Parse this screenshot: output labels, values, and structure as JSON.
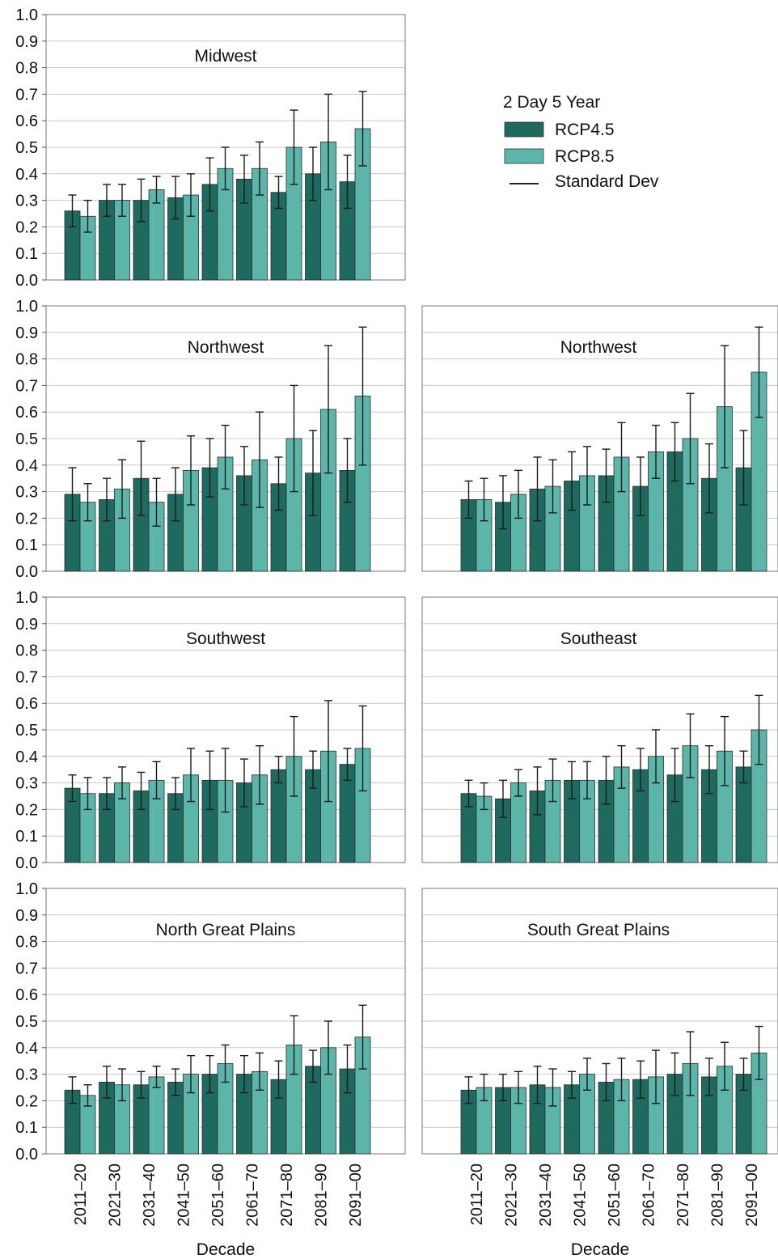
{
  "figure": {
    "legend": {
      "title": "2 Day 5 Year",
      "items": [
        {
          "label": "RCP4.5",
          "color": "#1e6a5e"
        },
        {
          "label": "RCP8.5",
          "color": "#5bb5a8"
        },
        {
          "label": "Standard Dev",
          "color": "#222222"
        }
      ]
    },
    "xlabel": "Decade"
  },
  "chart_data": [
    {
      "type": "bar",
      "title": "Midwest",
      "categories": [
        "2011–20",
        "2021–30",
        "2031–40",
        "2041–50",
        "2051–60",
        "2061–70",
        "2071–80",
        "2081–90",
        "2091–00"
      ],
      "series": [
        {
          "name": "RCP4.5",
          "values": [
            0.26,
            0.3,
            0.3,
            0.31,
            0.36,
            0.38,
            0.33,
            0.4,
            0.37
          ],
          "error": [
            0.06,
            0.06,
            0.08,
            0.08,
            0.1,
            0.09,
            0.06,
            0.1,
            0.1
          ]
        },
        {
          "name": "RCP8.5",
          "values": [
            0.24,
            0.3,
            0.34,
            0.32,
            0.42,
            0.42,
            0.5,
            0.52,
            0.57
          ],
          "error": [
            0.06,
            0.06,
            0.05,
            0.08,
            0.08,
            0.1,
            0.14,
            0.18,
            0.14
          ]
        }
      ],
      "ylim": [
        0,
        1.0
      ],
      "yticks": [
        "0.0",
        "0.1",
        "0.2",
        "0.3",
        "0.4",
        "0.5",
        "0.6",
        "0.7",
        "0.8",
        "0.9",
        "1.0"
      ],
      "xlabel": "",
      "grid": true
    },
    {
      "type": "bar",
      "title": "Northwest",
      "categories": [
        "2011–20",
        "2021–30",
        "2031–40",
        "2041–50",
        "2051–60",
        "2061–70",
        "2071–80",
        "2081–90",
        "2091–00"
      ],
      "series": [
        {
          "name": "RCP4.5",
          "values": [
            0.29,
            0.27,
            0.35,
            0.29,
            0.39,
            0.36,
            0.33,
            0.37,
            0.38
          ],
          "error": [
            0.1,
            0.08,
            0.14,
            0.1,
            0.11,
            0.11,
            0.1,
            0.16,
            0.12
          ]
        },
        {
          "name": "RCP8.5",
          "values": [
            0.26,
            0.31,
            0.26,
            0.38,
            0.43,
            0.42,
            0.5,
            0.61,
            0.66
          ],
          "error": [
            0.07,
            0.11,
            0.09,
            0.13,
            0.12,
            0.18,
            0.2,
            0.24,
            0.26
          ]
        }
      ],
      "ylim": [
        0,
        1.0
      ],
      "yticks": [
        "0.0",
        "0.1",
        "0.2",
        "0.3",
        "0.4",
        "0.5",
        "0.6",
        "0.7",
        "0.8",
        "0.9",
        "1.0"
      ],
      "xlabel": "",
      "grid": true
    },
    {
      "type": "bar",
      "title": "Northwest",
      "categories": [
        "2011–20",
        "2021–30",
        "2031–40",
        "2041–50",
        "2051–60",
        "2061–70",
        "2071–80",
        "2081–90",
        "2091–00"
      ],
      "series": [
        {
          "name": "RCP4.5",
          "values": [
            0.27,
            0.26,
            0.31,
            0.34,
            0.36,
            0.32,
            0.45,
            0.35,
            0.39
          ],
          "error": [
            0.07,
            0.1,
            0.12,
            0.11,
            0.1,
            0.11,
            0.11,
            0.13,
            0.14
          ]
        },
        {
          "name": "RCP8.5",
          "values": [
            0.27,
            0.29,
            0.32,
            0.36,
            0.43,
            0.45,
            0.5,
            0.62,
            0.75
          ],
          "error": [
            0.08,
            0.09,
            0.1,
            0.11,
            0.13,
            0.1,
            0.17,
            0.23,
            0.17
          ]
        }
      ],
      "ylim": [
        0,
        1.0
      ],
      "yticks": [],
      "xlabel": "",
      "grid": true
    },
    {
      "type": "bar",
      "title": "Southwest",
      "categories": [
        "2011–20",
        "2021–30",
        "2031–40",
        "2041–50",
        "2051–60",
        "2061–70",
        "2071–80",
        "2081–90",
        "2091–00"
      ],
      "series": [
        {
          "name": "RCP4.5",
          "values": [
            0.28,
            0.26,
            0.27,
            0.26,
            0.31,
            0.3,
            0.35,
            0.35,
            0.37
          ],
          "error": [
            0.05,
            0.06,
            0.07,
            0.06,
            0.11,
            0.09,
            0.05,
            0.07,
            0.06
          ]
        },
        {
          "name": "RCP8.5",
          "values": [
            0.26,
            0.3,
            0.31,
            0.33,
            0.31,
            0.33,
            0.4,
            0.42,
            0.43
          ],
          "error": [
            0.06,
            0.06,
            0.07,
            0.1,
            0.12,
            0.11,
            0.15,
            0.19,
            0.16
          ]
        }
      ],
      "ylim": [
        0,
        1.0
      ],
      "yticks": [
        "0.0",
        "0.1",
        "0.2",
        "0.3",
        "0.4",
        "0.5",
        "0.6",
        "0.7",
        "0.8",
        "0.9",
        "1.0"
      ],
      "xlabel": "",
      "grid": true
    },
    {
      "type": "bar",
      "title": "Southeast",
      "categories": [
        "2011–20",
        "2021–30",
        "2031–40",
        "2041–50",
        "2051–60",
        "2061–70",
        "2071–80",
        "2081–90",
        "2091–00"
      ],
      "series": [
        {
          "name": "RCP4.5",
          "values": [
            0.26,
            0.24,
            0.27,
            0.31,
            0.31,
            0.35,
            0.33,
            0.35,
            0.36
          ],
          "error": [
            0.05,
            0.07,
            0.09,
            0.07,
            0.09,
            0.08,
            0.1,
            0.09,
            0.06
          ]
        },
        {
          "name": "RCP8.5",
          "values": [
            0.25,
            0.3,
            0.31,
            0.31,
            0.36,
            0.4,
            0.44,
            0.42,
            0.5
          ],
          "error": [
            0.05,
            0.05,
            0.08,
            0.07,
            0.08,
            0.1,
            0.12,
            0.13,
            0.13
          ]
        }
      ],
      "ylim": [
        0,
        1.0
      ],
      "yticks": [],
      "xlabel": "",
      "grid": true
    },
    {
      "type": "bar",
      "title": "North Great Plains",
      "categories": [
        "2011–20",
        "2021–30",
        "2031–40",
        "2041–50",
        "2051–60",
        "2061–70",
        "2071–80",
        "2081–90",
        "2091–00"
      ],
      "series": [
        {
          "name": "RCP4.5",
          "values": [
            0.24,
            0.27,
            0.26,
            0.27,
            0.3,
            0.3,
            0.28,
            0.33,
            0.32
          ],
          "error": [
            0.05,
            0.06,
            0.05,
            0.05,
            0.07,
            0.07,
            0.07,
            0.06,
            0.09
          ]
        },
        {
          "name": "RCP8.5",
          "values": [
            0.22,
            0.26,
            0.29,
            0.3,
            0.34,
            0.31,
            0.41,
            0.4,
            0.44
          ],
          "error": [
            0.04,
            0.06,
            0.04,
            0.07,
            0.07,
            0.07,
            0.11,
            0.1,
            0.12
          ]
        }
      ],
      "ylim": [
        0,
        1.0
      ],
      "yticks": [
        "0.0",
        "0.1",
        "0.2",
        "0.3",
        "0.4",
        "0.5",
        "0.6",
        "0.7",
        "0.8",
        "0.9",
        "1.0"
      ],
      "xlabel": "Decade",
      "grid": true
    },
    {
      "type": "bar",
      "title": "South Great Plains",
      "categories": [
        "2011–20",
        "2021–30",
        "2031–40",
        "2041–50",
        "2051–60",
        "2061–70",
        "2071–80",
        "2081–90",
        "2091–00"
      ],
      "series": [
        {
          "name": "RCP4.5",
          "values": [
            0.24,
            0.25,
            0.26,
            0.26,
            0.27,
            0.28,
            0.3,
            0.29,
            0.3
          ],
          "error": [
            0.05,
            0.05,
            0.07,
            0.05,
            0.07,
            0.07,
            0.08,
            0.07,
            0.06
          ]
        },
        {
          "name": "RCP8.5",
          "values": [
            0.25,
            0.25,
            0.25,
            0.3,
            0.28,
            0.29,
            0.34,
            0.33,
            0.38
          ],
          "error": [
            0.05,
            0.06,
            0.07,
            0.06,
            0.08,
            0.1,
            0.12,
            0.09,
            0.1
          ]
        }
      ],
      "ylim": [
        0,
        1.0
      ],
      "yticks": [],
      "xlabel": "Decade",
      "grid": true
    }
  ]
}
